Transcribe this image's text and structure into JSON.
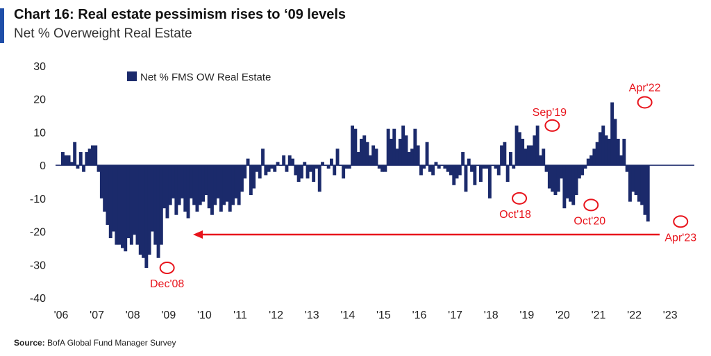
{
  "header": {
    "title": "Chart 16: Real estate pessimism rises to ‘09 levels",
    "subtitle": "Net % Overweight Real Estate"
  },
  "source": {
    "label": "Source:",
    "text": "BofA Global Fund Manager Survey"
  },
  "colors": {
    "bar": "#1b2a6b",
    "annotation": "#e8141c",
    "accent": "#1f4ea8"
  },
  "chart_data": {
    "type": "bar",
    "legend": {
      "label": "Net % FMS OW Real Estate",
      "placement": "top-left"
    },
    "ylim": [
      -40,
      30
    ],
    "y_ticks": [
      30,
      20,
      10,
      0,
      -10,
      -20,
      -30,
      -40
    ],
    "x_tick_labels": [
      "'06",
      "'07",
      "'08",
      "'09",
      "'10",
      "'11",
      "'12",
      "'13",
      "'14",
      "'15",
      "'16",
      "'17",
      "'18",
      "'19",
      "'20",
      "'21",
      "'22",
      "'23"
    ],
    "x_start": "2006-01",
    "series": [
      {
        "values": [
          4,
          3,
          3,
          1,
          7,
          -1,
          4,
          -2,
          4,
          5,
          6,
          6,
          -2,
          -10,
          -14,
          -18,
          -22,
          -20,
          -24,
          -24,
          -25,
          -26,
          -22,
          -24,
          -21,
          -24,
          -27,
          -28,
          -31,
          -27,
          -20,
          -24,
          -28,
          -24,
          -13,
          -16,
          -12,
          -10,
          -15,
          -12,
          -10,
          -14,
          -16,
          -10,
          -12,
          -14,
          -12,
          -11,
          -9,
          -13,
          -15,
          -12,
          -10,
          -14,
          -12,
          -11,
          -14,
          -12,
          -10,
          -12,
          -8,
          -4,
          2,
          -9,
          -7,
          -2,
          -4,
          5,
          -3,
          -2,
          -1,
          -2,
          1,
          0,
          3,
          -2,
          3,
          2,
          -3,
          -5,
          -4,
          1,
          -4,
          -2,
          -5,
          -1,
          -8,
          1,
          0,
          -1,
          2,
          -3,
          5,
          0,
          -4,
          -1,
          -1,
          12,
          11,
          4,
          8,
          9,
          7,
          3,
          6,
          5,
          -1,
          -2,
          -2,
          11,
          8,
          11,
          5,
          8,
          12,
          9,
          4,
          5,
          11,
          6,
          -3,
          -1,
          7,
          -2,
          -3,
          1,
          -1,
          0,
          -1,
          -2,
          -3,
          -6,
          -4,
          -3,
          4,
          -8,
          2,
          -2,
          -6,
          0,
          -5,
          -1,
          -1,
          -10,
          0,
          -1,
          -3,
          6,
          7,
          -5,
          4,
          -1,
          12,
          10,
          8,
          5,
          6,
          6,
          9,
          12,
          3,
          5,
          -2,
          -7,
          -8,
          -9,
          -8,
          -4,
          -13,
          -10,
          -11,
          -12,
          -9,
          -4,
          -3,
          -1,
          2,
          3,
          5,
          7,
          10,
          12,
          9,
          8,
          19,
          14,
          8,
          3,
          8,
          -2,
          -11,
          -8,
          -9,
          -11,
          -12,
          -15,
          -17
        ]
      }
    ],
    "annotations": [
      {
        "label": "Dec'08",
        "date": "2008-12",
        "value": -31
      },
      {
        "label": "Oct'18",
        "date": "2018-10",
        "value": -10
      },
      {
        "label": "Sep'19",
        "date": "2019-09",
        "value": 12
      },
      {
        "label": "Oct'20",
        "date": "2020-10",
        "value": -12
      },
      {
        "label": "Apr'22",
        "date": "2022-04",
        "value": 19
      },
      {
        "label": "Apr'23",
        "date": "2023-04",
        "value": -17
      }
    ]
  }
}
